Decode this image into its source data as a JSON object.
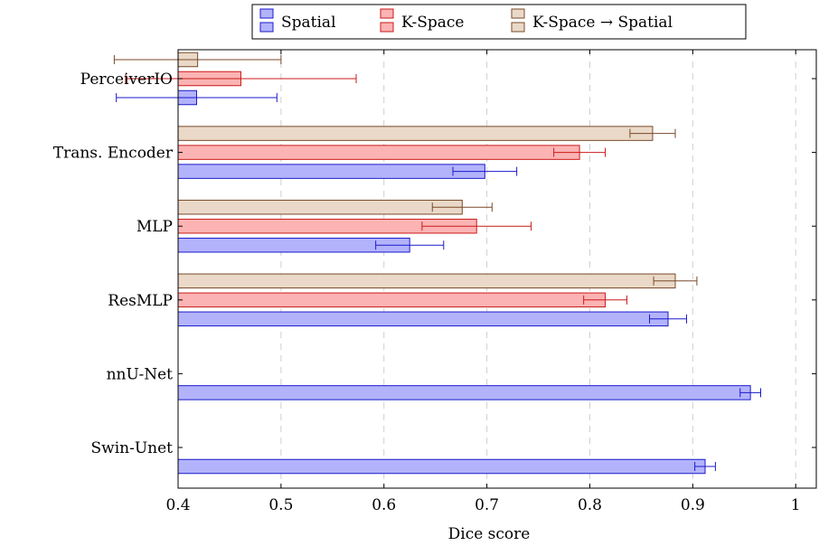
{
  "chart_data": {
    "type": "bar",
    "orientation": "horizontal",
    "xlabel": "Dice score",
    "ylabel": "",
    "xlim": [
      0.4,
      1.02
    ],
    "xticks": [
      "0.4",
      "0.5",
      "0.6",
      "0.7",
      "0.8",
      "0.9",
      "1"
    ],
    "grid": "vertical dashed",
    "legend_placement": "top-center",
    "categories": [
      "PerceiverIO",
      "Trans. Encoder",
      "MLP",
      "ResMLP",
      "nnU-Net",
      "Swin-Unet"
    ],
    "series": [
      {
        "name": "Spatial",
        "fill": "#b3b3fb",
        "stroke": "#1a1acc",
        "values": [
          0.418,
          0.698,
          0.625,
          0.876,
          0.956,
          0.912
        ],
        "errors": [
          0.078,
          0.031,
          0.033,
          0.018,
          0.01,
          0.01
        ]
      },
      {
        "name": "K-Space",
        "fill": "#fbb3b3",
        "stroke": "#cc1a1a",
        "values": [
          0.461,
          0.79,
          0.69,
          0.815,
          null,
          null
        ],
        "errors": [
          0.112,
          0.025,
          0.053,
          0.021,
          null,
          null
        ]
      },
      {
        "name": "K-Space → Spatial",
        "fill": "#ead9c8",
        "stroke": "#7a4a2a",
        "values": [
          0.419,
          0.861,
          0.676,
          0.883,
          null,
          null
        ],
        "errors": [
          0.081,
          0.022,
          0.029,
          0.021,
          null,
          null
        ]
      }
    ]
  }
}
